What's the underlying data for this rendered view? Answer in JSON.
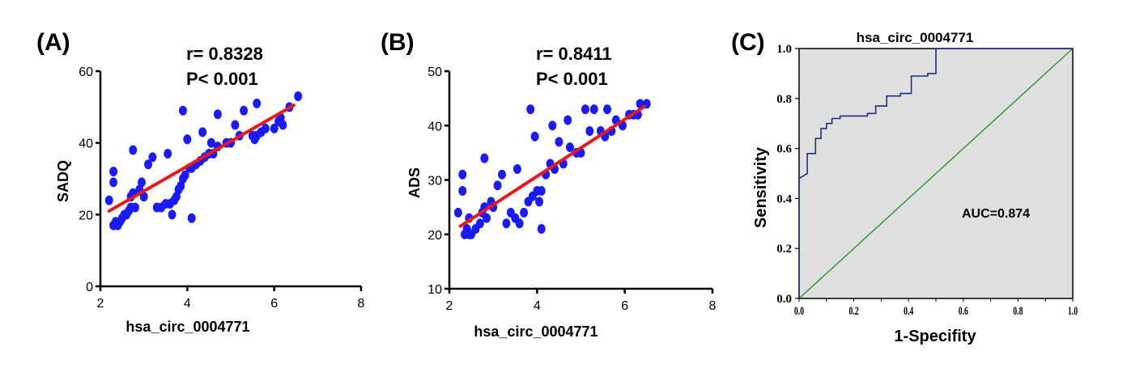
{
  "chart_data": [
    {
      "panel": "(A)",
      "type": "scatter",
      "stats": {
        "r": "r= 0.8328",
        "p": "P< 0.001"
      },
      "xlabel": "hsa_circ_0004771",
      "ylabel": "SADQ",
      "xlim": [
        2,
        8
      ],
      "ylim": [
        0,
        60
      ],
      "xticks": [
        "2",
        "4",
        "6",
        "8"
      ],
      "yticks": [
        "0",
        "20",
        "40",
        "60"
      ],
      "colors": {
        "points": "#1a1aff",
        "fit": "#e8191a"
      },
      "fit_line": [
        [
          2.2,
          21
        ],
        [
          6.45,
          50.5
        ]
      ],
      "points": [
        [
          2.2,
          24
        ],
        [
          2.3,
          29
        ],
        [
          2.3,
          32
        ],
        [
          2.3,
          17
        ],
        [
          2.35,
          18
        ],
        [
          2.4,
          17
        ],
        [
          2.45,
          18
        ],
        [
          2.5,
          19
        ],
        [
          2.55,
          20
        ],
        [
          2.6,
          20
        ],
        [
          2.65,
          21
        ],
        [
          2.7,
          22
        ],
        [
          2.7,
          25
        ],
        [
          2.75,
          26
        ],
        [
          2.75,
          38
        ],
        [
          2.8,
          22
        ],
        [
          2.9,
          27
        ],
        [
          2.95,
          29
        ],
        [
          3.0,
          25
        ],
        [
          3.1,
          34
        ],
        [
          3.2,
          36
        ],
        [
          3.3,
          22
        ],
        [
          3.4,
          22
        ],
        [
          3.5,
          23
        ],
        [
          3.55,
          37
        ],
        [
          3.6,
          23
        ],
        [
          3.65,
          20
        ],
        [
          3.7,
          24
        ],
        [
          3.75,
          25
        ],
        [
          3.8,
          27
        ],
        [
          3.85,
          28
        ],
        [
          3.9,
          30
        ],
        [
          3.9,
          49
        ],
        [
          3.95,
          31
        ],
        [
          4.0,
          41
        ],
        [
          4.05,
          33
        ],
        [
          4.1,
          19
        ],
        [
          4.1,
          33
        ],
        [
          4.2,
          34
        ],
        [
          4.3,
          35
        ],
        [
          4.35,
          43
        ],
        [
          4.4,
          36
        ],
        [
          4.5,
          37
        ],
        [
          4.55,
          40
        ],
        [
          4.6,
          37
        ],
        [
          4.7,
          39
        ],
        [
          4.7,
          48
        ],
        [
          4.9,
          40
        ],
        [
          5.0,
          40
        ],
        [
          5.1,
          45
        ],
        [
          5.2,
          42
        ],
        [
          5.3,
          49
        ],
        [
          5.5,
          42
        ],
        [
          5.55,
          41
        ],
        [
          5.6,
          42
        ],
        [
          5.6,
          51
        ],
        [
          5.7,
          43
        ],
        [
          5.8,
          44
        ],
        [
          6.0,
          44
        ],
        [
          6.1,
          46
        ],
        [
          6.15,
          47
        ],
        [
          6.2,
          45
        ],
        [
          6.35,
          50
        ],
        [
          6.55,
          53
        ]
      ]
    },
    {
      "panel": "(B)",
      "type": "scatter",
      "stats": {
        "r": "r= 0.8411",
        "p": "P< 0.001"
      },
      "xlabel": "hsa_circ_0004771",
      "ylabel": "ADS",
      "xlim": [
        2,
        8
      ],
      "ylim": [
        10,
        50
      ],
      "xticks": [
        "2",
        "4",
        "6",
        "8"
      ],
      "yticks": [
        "10",
        "20",
        "30",
        "40",
        "50"
      ],
      "colors": {
        "points": "#1a1aff",
        "fit": "#e8191a"
      },
      "fit_line": [
        [
          2.25,
          21.5
        ],
        [
          6.45,
          43.5
        ]
      ],
      "points": [
        [
          2.2,
          24
        ],
        [
          2.3,
          28
        ],
        [
          2.3,
          31
        ],
        [
          2.35,
          20
        ],
        [
          2.4,
          21
        ],
        [
          2.45,
          20
        ],
        [
          2.45,
          23
        ],
        [
          2.5,
          20
        ],
        [
          2.6,
          21
        ],
        [
          2.7,
          22
        ],
        [
          2.75,
          24
        ],
        [
          2.8,
          25
        ],
        [
          2.8,
          34
        ],
        [
          2.85,
          23
        ],
        [
          2.95,
          26
        ],
        [
          3.0,
          25
        ],
        [
          3.1,
          29
        ],
        [
          3.2,
          31
        ],
        [
          3.3,
          22
        ],
        [
          3.4,
          24
        ],
        [
          3.5,
          23
        ],
        [
          3.55,
          32
        ],
        [
          3.6,
          22
        ],
        [
          3.7,
          24
        ],
        [
          3.8,
          26
        ],
        [
          3.85,
          43
        ],
        [
          3.9,
          27
        ],
        [
          3.95,
          38
        ],
        [
          4.0,
          28
        ],
        [
          4.05,
          26
        ],
        [
          4.1,
          21
        ],
        [
          4.1,
          28
        ],
        [
          4.2,
          31
        ],
        [
          4.3,
          33
        ],
        [
          4.35,
          40
        ],
        [
          4.4,
          32
        ],
        [
          4.5,
          37
        ],
        [
          4.6,
          33
        ],
        [
          4.7,
          41
        ],
        [
          4.75,
          36
        ],
        [
          4.9,
          35
        ],
        [
          5.0,
          35
        ],
        [
          5.1,
          43
        ],
        [
          5.2,
          39
        ],
        [
          5.3,
          43
        ],
        [
          5.45,
          39
        ],
        [
          5.55,
          38
        ],
        [
          5.6,
          43
        ],
        [
          5.7,
          39
        ],
        [
          5.8,
          41
        ],
        [
          5.95,
          40
        ],
        [
          6.1,
          42
        ],
        [
          6.2,
          42
        ],
        [
          6.3,
          42
        ],
        [
          6.35,
          44
        ],
        [
          6.5,
          44
        ]
      ]
    },
    {
      "panel": "(C)",
      "type": "line",
      "title": "hsa_circ_0004771",
      "xlabel": "1-Specifity",
      "ylabel": "Sensitivity",
      "xlim": [
        0,
        1
      ],
      "ylim": [
        0,
        1
      ],
      "xticks": [
        "0.0",
        "0.2",
        "0.4",
        "0.6",
        "0.8",
        "1.0"
      ],
      "xticks_minor": [
        "0.0",
        "0.1",
        "0.2",
        "0.3",
        "0.4",
        "0.5",
        "0.6",
        "0.7",
        "0.8",
        "0.9",
        "1.0"
      ],
      "yticks": [
        "0.0",
        "0.2",
        "0.4",
        "0.6",
        "0.8",
        "1.0"
      ],
      "annotation": "AUC=0.874",
      "colors": {
        "roc": "#1c2e8c",
        "reference": "#2e9e2e",
        "background": "#e0e0e0"
      },
      "series": [
        {
          "points": [
            [
              0,
              0
            ],
            [
              0,
              0.48
            ],
            [
              0.03,
              0.5
            ],
            [
              0.03,
              0.58
            ],
            [
              0.06,
              0.58
            ],
            [
              0.06,
              0.64
            ],
            [
              0.08,
              0.64
            ],
            [
              0.08,
              0.68
            ],
            [
              0.1,
              0.68
            ],
            [
              0.1,
              0.7
            ],
            [
              0.12,
              0.7
            ],
            [
              0.12,
              0.72
            ],
            [
              0.15,
              0.72
            ],
            [
              0.15,
              0.73
            ],
            [
              0.25,
              0.73
            ],
            [
              0.25,
              0.74
            ],
            [
              0.28,
              0.74
            ],
            [
              0.28,
              0.77
            ],
            [
              0.32,
              0.77
            ],
            [
              0.32,
              0.81
            ],
            [
              0.37,
              0.81
            ],
            [
              0.37,
              0.82
            ],
            [
              0.41,
              0.82
            ],
            [
              0.41,
              0.89
            ],
            [
              0.47,
              0.89
            ],
            [
              0.47,
              0.9
            ],
            [
              0.5,
              0.9
            ],
            [
              0.5,
              1.0
            ],
            [
              1.0,
              1.0
            ]
          ]
        },
        {
          "points": [
            [
              0,
              0
            ],
            [
              1,
              1
            ]
          ]
        }
      ]
    }
  ]
}
